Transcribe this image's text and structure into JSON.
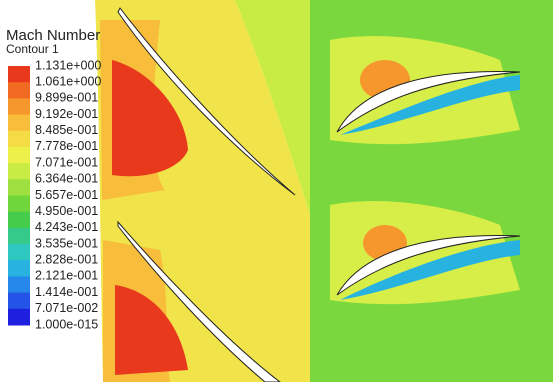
{
  "legend": {
    "title": "Mach Number",
    "subtitle": "Contour 1",
    "labels": [
      "1.131e+000",
      "1.061e+000",
      "9.899e-001",
      "9.192e-001",
      "8.485e-001",
      "7.778e-001",
      "7.071e-001",
      "6.364e-001",
      "5.657e-001",
      "4.950e-001",
      "4.243e-001",
      "3.535e-001",
      "2.828e-001",
      "2.121e-001",
      "1.414e-001",
      "7.071e-002",
      "1.000e-015"
    ],
    "colors": [
      "#e8391c",
      "#f06a22",
      "#f5972c",
      "#f8bd3b",
      "#f5dc45",
      "#eef04a",
      "#c9ec44",
      "#9de03f",
      "#6fd63c",
      "#45cc4a",
      "#35c98a",
      "#2ec8c0",
      "#27b2e0",
      "#2587ea",
      "#2453e8",
      "#1f1fe0"
    ]
  }
}
